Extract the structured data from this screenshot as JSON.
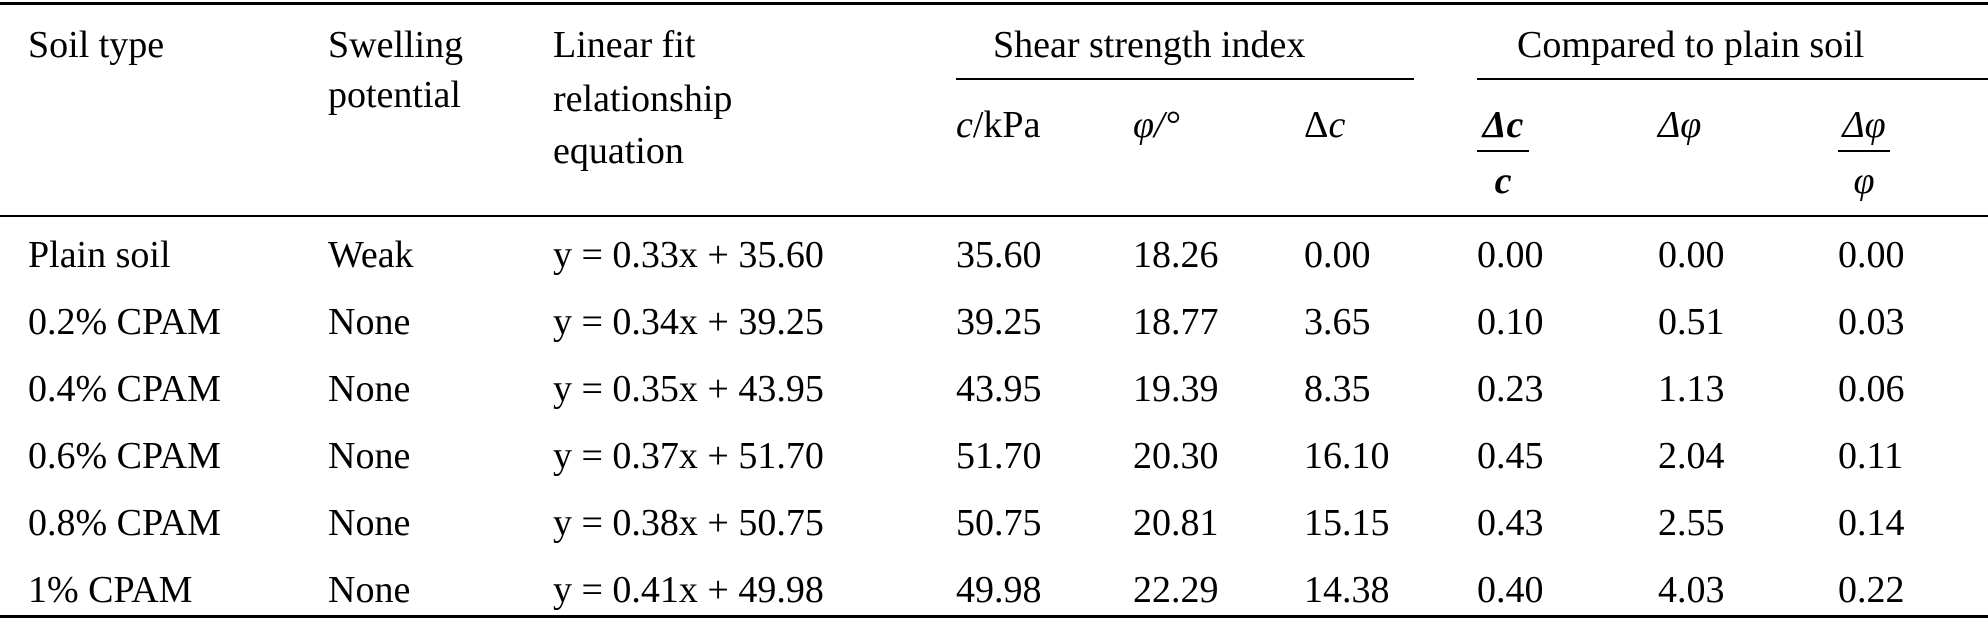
{
  "table": {
    "headers": {
      "soil_type": "Soil type",
      "swelling_1": "Swelling",
      "swelling_2": "potential",
      "linear_1": "Linear fit",
      "linear_2": "relationship",
      "linear_3": "equation",
      "group_shear": "Shear strength index",
      "group_compared": "Compared to plain soil",
      "c_kpa_var": "c",
      "c_kpa_unit": "/kPa",
      "phi": "φ/°",
      "delta_c_sym": "Δ",
      "delta_c_var": "c",
      "ratio_c_num": "Δc",
      "ratio_c_den": "c",
      "delta_phi": "Δφ",
      "ratio_phi_num": "Δφ",
      "ratio_phi_den": "φ"
    },
    "rows": [
      [
        "Plain soil",
        "Weak",
        "y = 0.33x + 35.60",
        "35.60",
        "18.26",
        "0.00",
        "0.00",
        "0.00",
        "0.00"
      ],
      [
        "0.2% CPAM",
        "None",
        "y = 0.34x + 39.25",
        "39.25",
        "18.77",
        "3.65",
        "0.10",
        "0.51",
        "0.03"
      ],
      [
        "0.4% CPAM",
        "None",
        "y = 0.35x + 43.95",
        "43.95",
        "19.39",
        "8.35",
        "0.23",
        "1.13",
        "0.06"
      ],
      [
        "0.6% CPAM",
        "None",
        "y = 0.37x + 51.70",
        "51.70",
        "20.30",
        "16.10",
        "0.45",
        "2.04",
        "0.11"
      ],
      [
        "0.8% CPAM",
        "None",
        "y = 0.38x + 50.75",
        "50.75",
        "20.81",
        "15.15",
        "0.43",
        "2.55",
        "0.14"
      ],
      [
        "1% CPAM",
        "None",
        "y = 0.41x + 49.98",
        "49.98",
        "22.29",
        "14.38",
        "0.40",
        "4.03",
        "0.22"
      ]
    ]
  }
}
